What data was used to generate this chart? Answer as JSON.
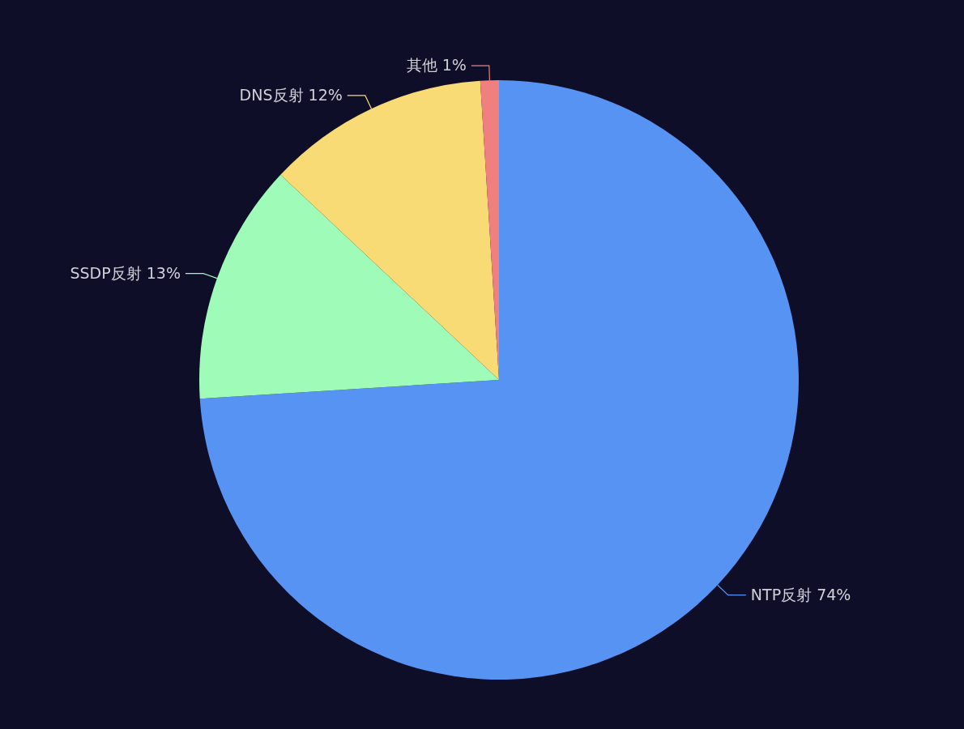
{
  "chart_data": {
    "type": "pie",
    "categories": [
      "NTP反射",
      "SSDP反射",
      "DNS反射",
      "其他"
    ],
    "values": [
      74,
      13,
      12,
      1
    ],
    "value_labels": [
      "74%",
      "13%",
      "12%",
      "1%"
    ],
    "colors": [
      "#5793f3",
      "#9ffbb8",
      "#f8db74",
      "#f08080"
    ],
    "legend": false
  }
}
